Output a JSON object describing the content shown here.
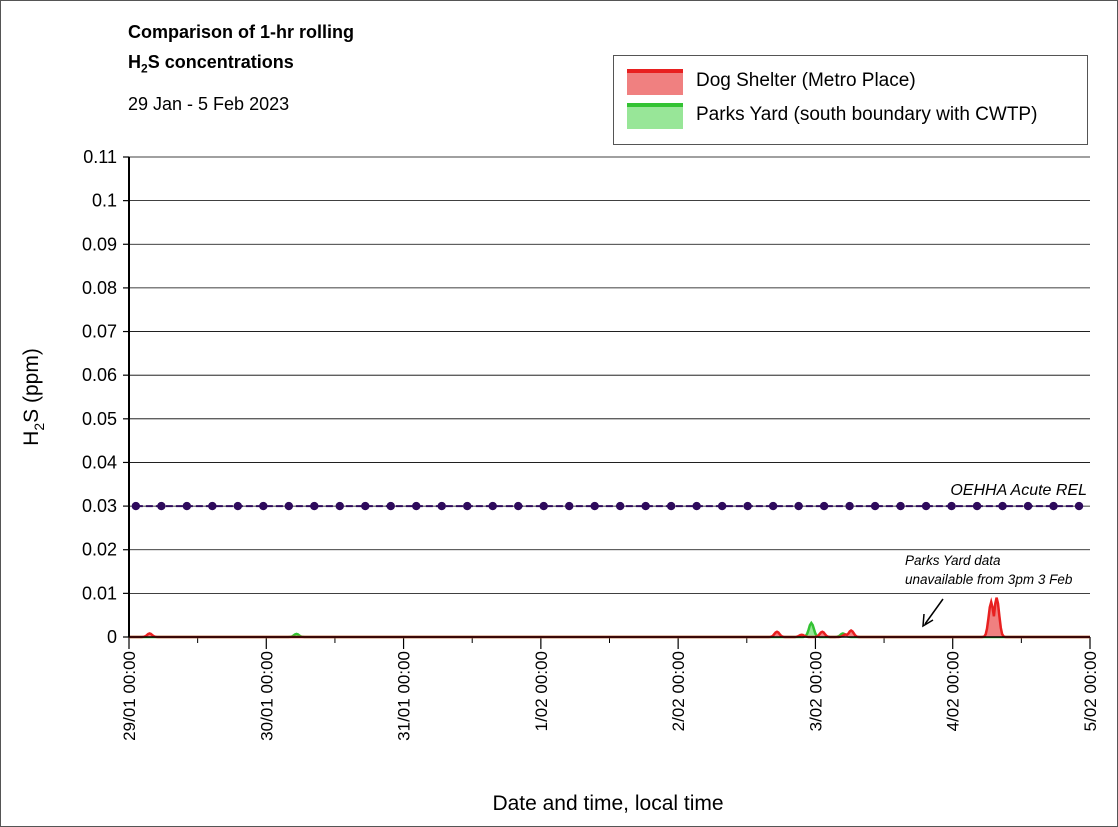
{
  "chart_data": {
    "type": "area",
    "title_line1": "Comparison of 1-hr rolling",
    "title_line2_main": "H",
    "title_line2_sub": "2",
    "title_line2_rest": "S concentrations",
    "subtitle": "29 Jan - 5 Feb 2023",
    "ylabel_main": "H",
    "ylabel_sub": "2",
    "ylabel_rest": "S (ppm)",
    "xlabel": "Date and time, local time",
    "ylim": [
      0,
      0.11
    ],
    "yticks": [
      0,
      0.01,
      0.02,
      0.03,
      0.04,
      0.05,
      0.06,
      0.07,
      0.08,
      0.09,
      0.1,
      0.11
    ],
    "ytick_labels": [
      "0",
      "0.01",
      "0.02",
      "0.03",
      "0.04",
      "0.05",
      "0.06",
      "0.07",
      "0.08",
      "0.09",
      "0.1",
      "0.11"
    ],
    "x_domain_days": [
      0,
      7
    ],
    "xticks": [
      "29/01 00:00",
      "30/01 00:00",
      "31/01 00:00",
      "1/02 00:00",
      "2/02 00:00",
      "3/02 00:00",
      "4/02 00:00",
      "5/02 00:00"
    ],
    "grid": true,
    "legend_position": "top-right",
    "series": [
      {
        "name": "Dog Shelter (Metro Place)",
        "color": "#e82020",
        "fill": "#f08080",
        "peaks": [
          {
            "center": 0.15,
            "height": 0.0008
          },
          {
            "center": 4.72,
            "height": 0.0012
          },
          {
            "center": 4.9,
            "height": 0.0005
          },
          {
            "center": 5.05,
            "height": 0.0012
          },
          {
            "center": 5.22,
            "height": 0.0006
          },
          {
            "center": 5.26,
            "height": 0.0015
          },
          {
            "center": 6.28,
            "height": 0.008
          },
          {
            "center": 6.32,
            "height": 0.009
          }
        ]
      },
      {
        "name": "Parks Yard (south boundary with CWTP)",
        "color": "#33c233",
        "fill": "#98e698",
        "peaks": [
          {
            "center": 1.22,
            "height": 0.0007
          },
          {
            "center": 4.97,
            "height": 0.0032
          },
          {
            "center": 5.2,
            "height": 0.0008
          }
        ]
      }
    ],
    "reference_line": {
      "label": "OEHHA Acute REL",
      "value": 0.03,
      "color": "#2e0a5c"
    },
    "annotation": {
      "line1": "Parks Yard data",
      "line2": "unavailable from 3pm 3 Feb"
    }
  }
}
